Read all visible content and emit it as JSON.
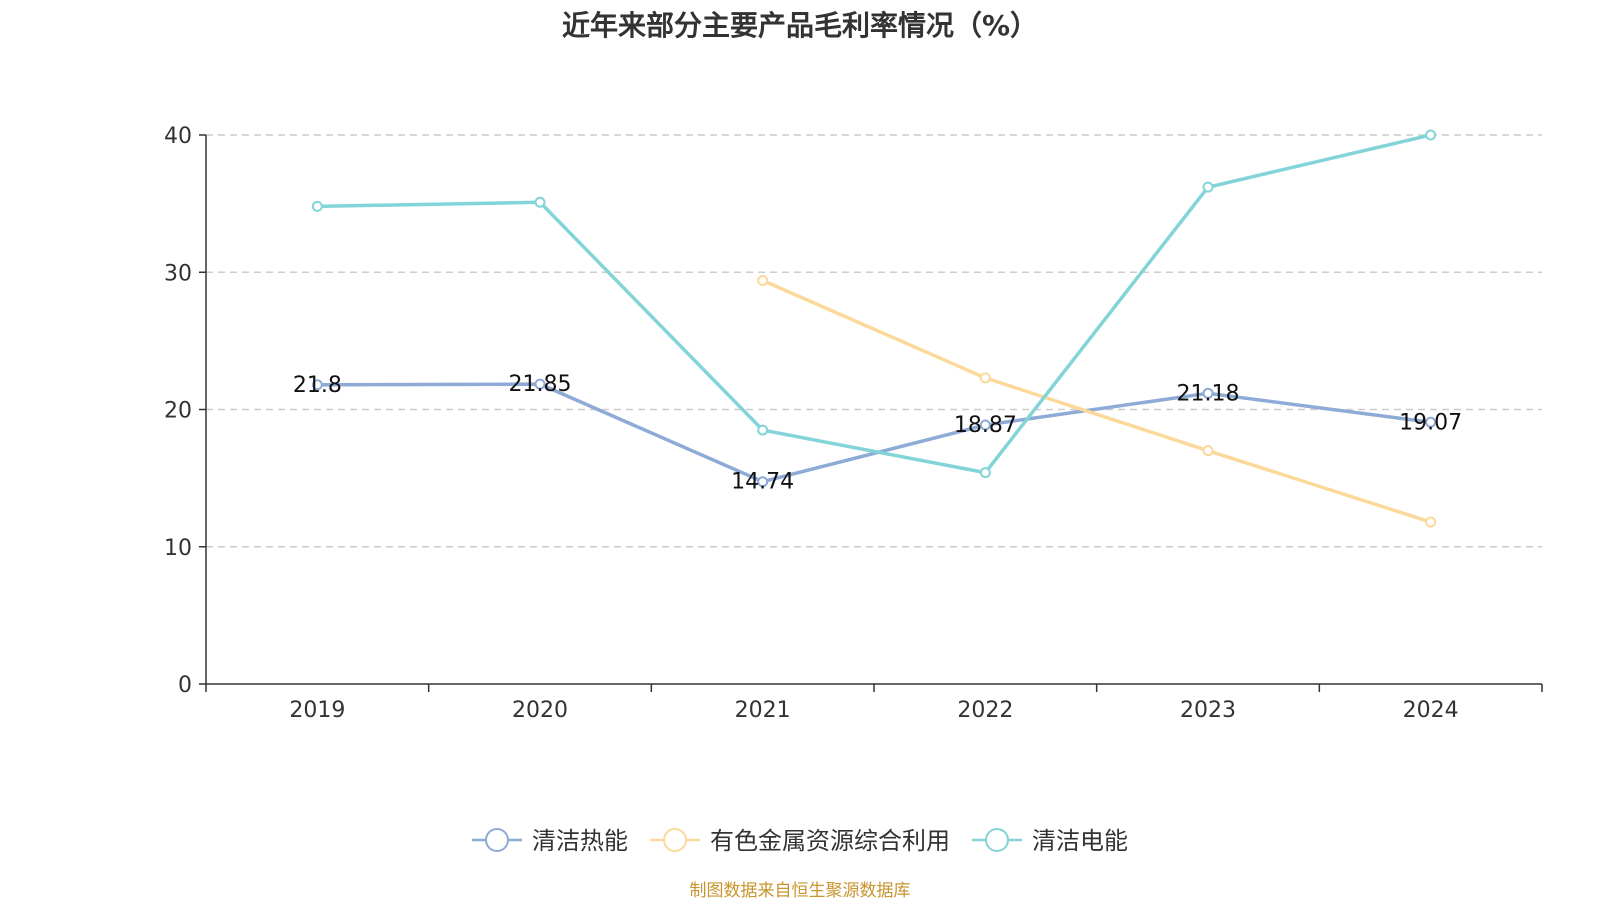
{
  "chart_data": {
    "type": "line",
    "title": "近年来部分主要产品毛利率情况（%）",
    "categories": [
      "2019",
      "2020",
      "2021",
      "2022",
      "2023",
      "2024"
    ],
    "ylim": [
      0,
      40
    ],
    "yticks": [
      0,
      10,
      20,
      30,
      40
    ],
    "grid": true,
    "legend_position": "bottom",
    "series": [
      {
        "name": "清洁热能",
        "color": "#8eaad6",
        "values": [
          21.8,
          21.85,
          14.74,
          18.87,
          21.18,
          19.07
        ],
        "labels": [
          "21.8",
          "21.85",
          "14.74",
          "18.87",
          "21.18",
          "19.07"
        ]
      },
      {
        "name": "有色金属资源综合利用",
        "color": "#fcd99a",
        "values": [
          null,
          null,
          29.4,
          22.3,
          17.0,
          11.8
        ],
        "labels": []
      },
      {
        "name": "清洁电能",
        "color": "#82d4d8",
        "values": [
          34.8,
          35.1,
          18.5,
          15.4,
          36.2,
          40.0
        ],
        "labels": []
      }
    ]
  },
  "footer": {
    "source": "制图数据来自恒生聚源数据库"
  }
}
